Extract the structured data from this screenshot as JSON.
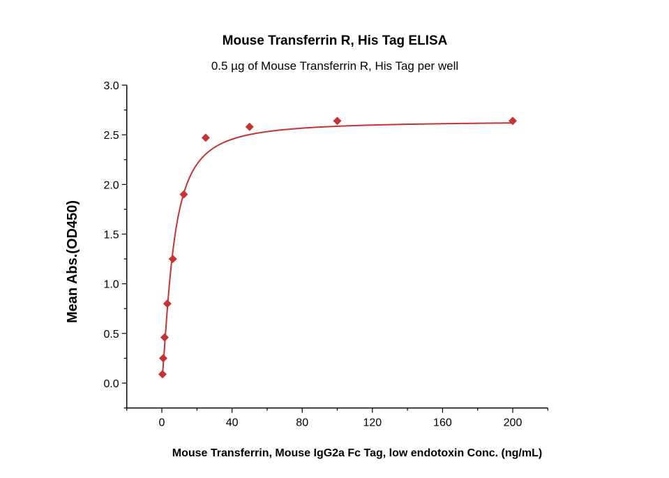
{
  "chart_data": {
    "type": "scatter",
    "title": "Mouse Transferrin R, His Tag ELISA",
    "subtitle": "0.5 µg of Mouse Transferrin R, His Tag per well",
    "xlabel": "Mouse Transferrin, Mouse IgG2a Fc Tag, low endotoxin Conc. (ng/mL)",
    "ylabel": "Mean Abs.(OD450)",
    "xlim": [
      -20,
      220
    ],
    "ylim": [
      -0.25,
      3.0
    ],
    "xticks": [
      "0",
      "40",
      "80",
      "120",
      "160",
      "200"
    ],
    "yticks": [
      "0.0",
      "0.5",
      "1.0",
      "1.5",
      "2.0",
      "2.5",
      "3.0"
    ],
    "grid": false,
    "marker": "diamond",
    "fit_line": "sigmoidal fit",
    "color": "#c83232",
    "x": [
      0.39,
      0.78,
      1.56,
      3.125,
      6.25,
      12.5,
      25,
      50,
      100,
      200
    ],
    "y": [
      0.09,
      0.25,
      0.46,
      0.8,
      1.25,
      1.9,
      2.47,
      2.58,
      2.64,
      2.64
    ]
  }
}
